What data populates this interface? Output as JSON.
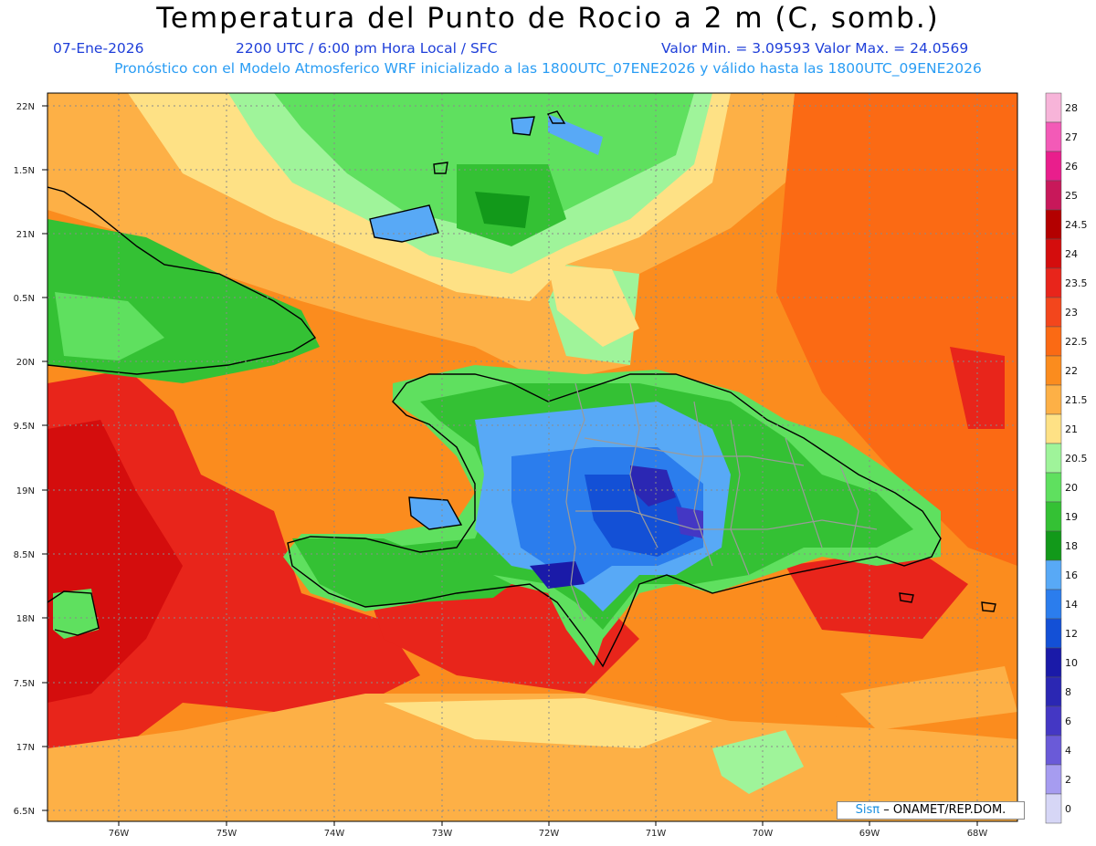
{
  "title": "Temperatura del Punto de Rocio a 2 m (C, somb.)",
  "subtitle": {
    "date": "07-Ene-2026",
    "time": "2200 UTC / 6:00 pm Hora Local / SFC",
    "minmax": "Valor Min. = 3.09593  Valor Max. = 24.0569",
    "model": "Pronóstico con el Modelo Atmosferico WRF inicializado a las 1800UTC_07ENE2026 y válido hasta las  1800UTC_09ENE2026"
  },
  "map": {
    "lat_labels": [
      "22N",
      "1.5N",
      "21N",
      "0.5N",
      "20N",
      "9.5N",
      "19N",
      "8.5N",
      "18N",
      "7.5N",
      "17N",
      "6.5N"
    ],
    "lon_labels": [
      "76W",
      "75W",
      "74W",
      "73W",
      "72W",
      "71W",
      "70W",
      "69W",
      "68W"
    ]
  },
  "colorbar": {
    "labels": [
      "28",
      "27",
      "26",
      "25",
      "24.5",
      "24",
      "23.5",
      "23",
      "22.5",
      "22",
      "21.5",
      "21",
      "20.5",
      "20",
      "19",
      "18",
      "16",
      "14",
      "12",
      "10",
      "8",
      "6",
      "4",
      "2",
      "0"
    ],
    "colors": [
      "#f7b4d9",
      "#f35ab7",
      "#e91e8c",
      "#c8185a",
      "#b30000",
      "#d40d0d",
      "#e8251b",
      "#f3461c",
      "#fb6a14",
      "#fb8c1e",
      "#fdb046",
      "#fee185",
      "#9ff49a",
      "#5fe05f",
      "#34c134",
      "#12991a",
      "#58a9f6",
      "#2b7ded",
      "#1350d6",
      "#1a1aa8",
      "#2b27b3",
      "#4437c4",
      "#6a5ad8",
      "#a69cf0",
      "#d6d6f6"
    ]
  },
  "credit": {
    "brand": "Sisπ",
    "text": "– ONAMET/REP.DOM."
  }
}
